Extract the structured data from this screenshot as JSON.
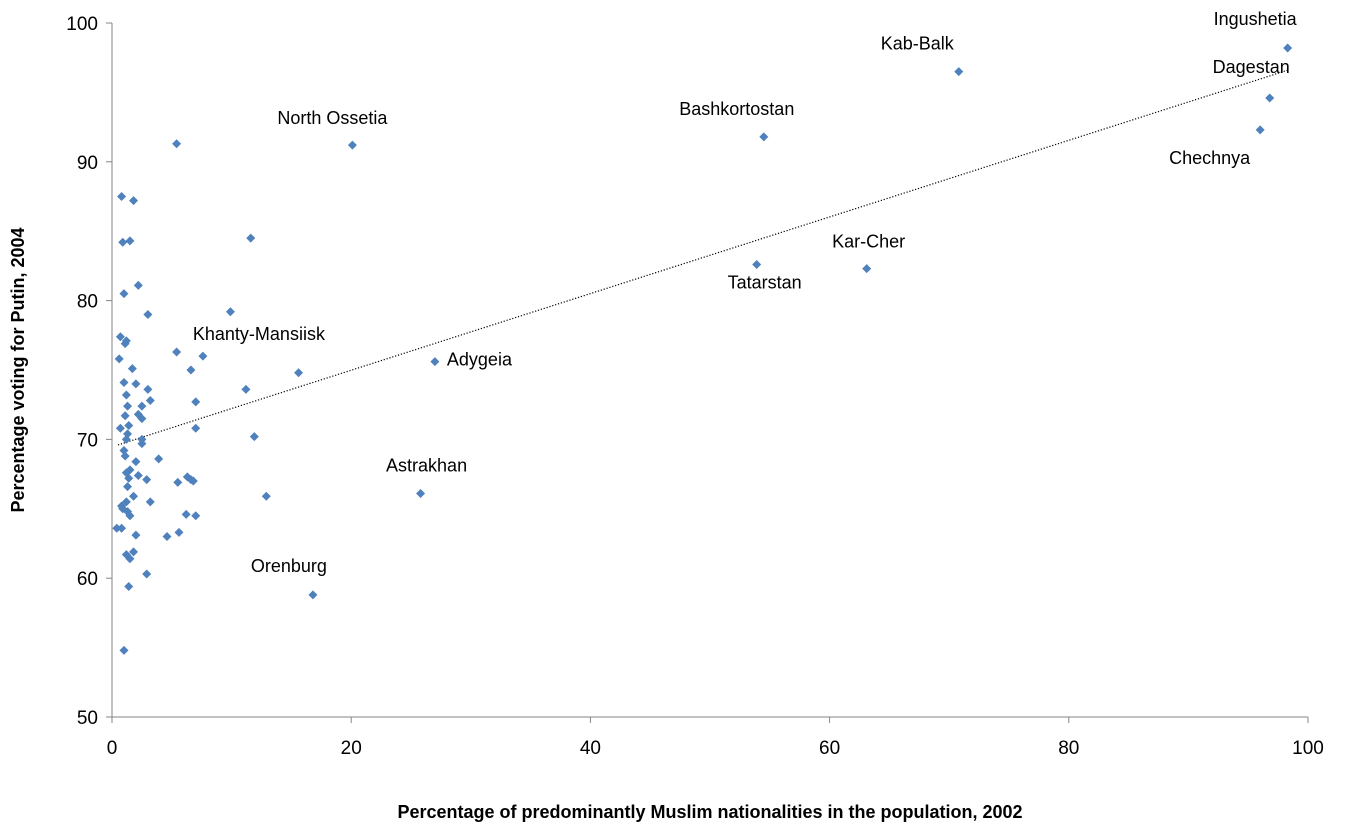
{
  "chart_data": {
    "type": "scatter",
    "title": "",
    "xlabel": "Percentage of predominantly Muslim nationalities in the population, 2002",
    "ylabel": "Percentage voting for Putin, 2004",
    "xlim": [
      0,
      100
    ],
    "ylim": [
      50,
      100
    ],
    "x_ticks": [
      "0",
      "20",
      "40",
      "60",
      "80",
      "100"
    ],
    "y_ticks": [
      "50",
      "60",
      "70",
      "80",
      "90",
      "100"
    ],
    "grid": false,
    "legend": "none",
    "marker_color": "#4F81BD",
    "trendline": {
      "style": "dotted",
      "from": [
        0.5,
        69.6
      ],
      "to": [
        98.3,
        96.6
      ]
    },
    "points": [
      {
        "x": 0.4,
        "y": 63.6
      },
      {
        "x": 0.6,
        "y": 75.8
      },
      {
        "x": 0.7,
        "y": 77.4
      },
      {
        "x": 0.7,
        "y": 70.8
      },
      {
        "x": 0.8,
        "y": 87.5
      },
      {
        "x": 0.8,
        "y": 65.2
      },
      {
        "x": 0.8,
        "y": 63.6
      },
      {
        "x": 0.9,
        "y": 65.0
      },
      {
        "x": 0.9,
        "y": 84.2
      },
      {
        "x": 1.0,
        "y": 80.5
      },
      {
        "x": 1.0,
        "y": 74.1
      },
      {
        "x": 1.0,
        "y": 69.2
      },
      {
        "x": 1.0,
        "y": 54.8
      },
      {
        "x": 1.1,
        "y": 76.9
      },
      {
        "x": 1.1,
        "y": 71.7
      },
      {
        "x": 1.1,
        "y": 68.8
      },
      {
        "x": 1.2,
        "y": 77.1
      },
      {
        "x": 1.2,
        "y": 73.2
      },
      {
        "x": 1.2,
        "y": 70.0
      },
      {
        "x": 1.2,
        "y": 67.6
      },
      {
        "x": 1.2,
        "y": 65.5
      },
      {
        "x": 1.2,
        "y": 61.7
      },
      {
        "x": 1.3,
        "y": 72.4
      },
      {
        "x": 1.3,
        "y": 70.4
      },
      {
        "x": 1.3,
        "y": 66.6
      },
      {
        "x": 1.3,
        "y": 64.8
      },
      {
        "x": 1.4,
        "y": 71.0
      },
      {
        "x": 1.4,
        "y": 67.2
      },
      {
        "x": 1.4,
        "y": 59.4
      },
      {
        "x": 1.5,
        "y": 84.3
      },
      {
        "x": 1.5,
        "y": 67.8
      },
      {
        "x": 1.5,
        "y": 64.5
      },
      {
        "x": 1.5,
        "y": 61.4
      },
      {
        "x": 1.7,
        "y": 75.1
      },
      {
        "x": 1.8,
        "y": 87.2
      },
      {
        "x": 1.8,
        "y": 65.9
      },
      {
        "x": 1.8,
        "y": 61.9
      },
      {
        "x": 2.0,
        "y": 74.0
      },
      {
        "x": 2.0,
        "y": 68.4
      },
      {
        "x": 2.0,
        "y": 63.1
      },
      {
        "x": 2.2,
        "y": 81.1
      },
      {
        "x": 2.2,
        "y": 71.8
      },
      {
        "x": 2.2,
        "y": 67.4
      },
      {
        "x": 2.5,
        "y": 72.4
      },
      {
        "x": 2.5,
        "y": 71.5
      },
      {
        "x": 2.5,
        "y": 70.0
      },
      {
        "x": 2.5,
        "y": 69.7
      },
      {
        "x": 2.9,
        "y": 67.1
      },
      {
        "x": 2.9,
        "y": 60.3
      },
      {
        "x": 3.0,
        "y": 79.0
      },
      {
        "x": 3.0,
        "y": 73.6
      },
      {
        "x": 3.2,
        "y": 72.8
      },
      {
        "x": 3.2,
        "y": 65.5
      },
      {
        "x": 3.9,
        "y": 68.6
      },
      {
        "x": 4.6,
        "y": 63.0
      },
      {
        "x": 5.4,
        "y": 91.3
      },
      {
        "x": 5.4,
        "y": 76.3
      },
      {
        "x": 5.5,
        "y": 66.9
      },
      {
        "x": 5.6,
        "y": 63.3
      },
      {
        "x": 6.2,
        "y": 64.6
      },
      {
        "x": 6.3,
        "y": 67.3
      },
      {
        "x": 6.6,
        "y": 75.0
      },
      {
        "x": 6.6,
        "y": 67.1
      },
      {
        "x": 6.8,
        "y": 67.0
      },
      {
        "x": 7.0,
        "y": 70.8
      },
      {
        "x": 7.0,
        "y": 64.5
      },
      {
        "x": 7.0,
        "y": 72.7
      },
      {
        "x": 7.6,
        "y": 76.0
      },
      {
        "x": 9.9,
        "y": 79.2
      },
      {
        "x": 11.2,
        "y": 73.6
      },
      {
        "x": 11.6,
        "y": 84.5
      },
      {
        "x": 11.9,
        "y": 70.2
      },
      {
        "x": 12.9,
        "y": 65.9
      },
      {
        "x": 15.6,
        "y": 74.8
      },
      {
        "x": 16.8,
        "y": 58.8
      },
      {
        "x": 20.1,
        "y": 91.2
      },
      {
        "x": 25.8,
        "y": 66.1
      },
      {
        "x": 27.0,
        "y": 75.6
      },
      {
        "x": 53.9,
        "y": 82.6
      },
      {
        "x": 54.5,
        "y": 91.8
      },
      {
        "x": 63.1,
        "y": 82.3
      },
      {
        "x": 70.8,
        "y": 96.5
      },
      {
        "x": 96.0,
        "y": 92.3
      },
      {
        "x": 96.8,
        "y": 94.6
      },
      {
        "x": 98.3,
        "y": 98.2
      }
    ],
    "annotations": [
      {
        "text": "North Ossetia",
        "x": 20.1,
        "y": 91.2,
        "place": "above"
      },
      {
        "text": "Bashkortostan",
        "x": 54.5,
        "y": 91.8,
        "place": "above-left"
      },
      {
        "text": "Kab-Balk",
        "x": 70.8,
        "y": 96.5,
        "place": "above-left"
      },
      {
        "text": "Ingushetia",
        "x": 98.3,
        "y": 98.2,
        "place": "above-left"
      },
      {
        "text": "Dagestan",
        "x": 96.8,
        "y": 94.6,
        "place": "below"
      },
      {
        "text": "Chechnya",
        "x": 96.0,
        "y": 92.3,
        "place": "below-left"
      },
      {
        "text": "Kar-Cher",
        "x": 63.1,
        "y": 82.3,
        "place": "above"
      },
      {
        "text": "Tatarstan",
        "x": 53.9,
        "y": 82.6,
        "place": "below"
      },
      {
        "text": "Khanty-Mansiisk",
        "x": 7.6,
        "y": 76.0,
        "place": "above-right"
      },
      {
        "text": "Adygeia",
        "x": 27.0,
        "y": 75.6,
        "place": "right"
      },
      {
        "text": "Astrakhan",
        "x": 25.8,
        "y": 66.1,
        "place": "above-left"
      },
      {
        "text": "Orenburg",
        "x": 16.8,
        "y": 58.8,
        "place": "above-left"
      }
    ]
  }
}
